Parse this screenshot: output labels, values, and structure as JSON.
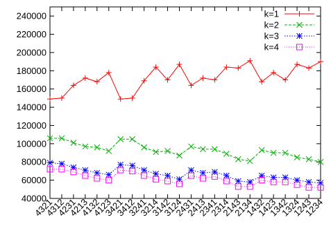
{
  "chart_data": {
    "type": "line",
    "title": "",
    "xlabel": "",
    "ylabel": "",
    "categories": [
      "4321",
      "4312",
      "4231",
      "4213",
      "4132",
      "4123",
      "3421",
      "3412",
      "3241",
      "3214",
      "3142",
      "3124",
      "2431",
      "2413",
      "2341",
      "2314",
      "2143",
      "2134",
      "1432",
      "1423",
      "1342",
      "1324",
      "1243",
      "1234"
    ],
    "ylim": [
      40000,
      250000
    ],
    "yticks": [
      40000,
      60000,
      80000,
      100000,
      120000,
      140000,
      160000,
      180000,
      200000,
      220000,
      240000
    ],
    "ytick_labels": [
      "40000",
      "60000",
      "80000",
      "100000",
      "120000",
      "140000",
      "160000",
      "180000",
      "200000",
      "220000",
      "240000"
    ],
    "grid": false,
    "legend_position": "top-right",
    "series": [
      {
        "name": "k=1",
        "color": "#ff0000",
        "marker": "plus",
        "dash": "",
        "values": [
          149000,
          150000,
          164000,
          172000,
          168000,
          178000,
          149000,
          150000,
          169000,
          184000,
          170000,
          187000,
          164000,
          172000,
          170000,
          184000,
          183000,
          191000,
          168000,
          178000,
          170000,
          187000,
          183000,
          190000
        ]
      },
      {
        "name": "k=2",
        "color": "#00b000",
        "marker": "cross",
        "dash": "4 2",
        "values": [
          106000,
          106000,
          101000,
          97000,
          96000,
          92000,
          105000,
          105000,
          96000,
          91000,
          92000,
          87000,
          97000,
          94000,
          94000,
          89000,
          83000,
          81000,
          93000,
          90000,
          90000,
          85000,
          83000,
          80000
        ]
      },
      {
        "name": "k=3",
        "color": "#0000ff",
        "marker": "star",
        "dash": "1.5 2",
        "values": [
          79000,
          78000,
          74000,
          71000,
          68000,
          66000,
          77000,
          76000,
          71000,
          67000,
          65000,
          61000,
          71000,
          68000,
          69000,
          65000,
          59000,
          58000,
          65000,
          63000,
          63000,
          60000,
          58000,
          57000
        ]
      },
      {
        "name": "k=4",
        "color": "#ff00ff",
        "marker": "square",
        "dash": "1 2",
        "values": [
          72000,
          72000,
          69000,
          65000,
          62000,
          60000,
          71000,
          70000,
          65000,
          61000,
          59000,
          56000,
          65000,
          62000,
          64000,
          59000,
          53000,
          53000,
          60000,
          58000,
          58000,
          55000,
          52000,
          52000
        ]
      }
    ]
  }
}
